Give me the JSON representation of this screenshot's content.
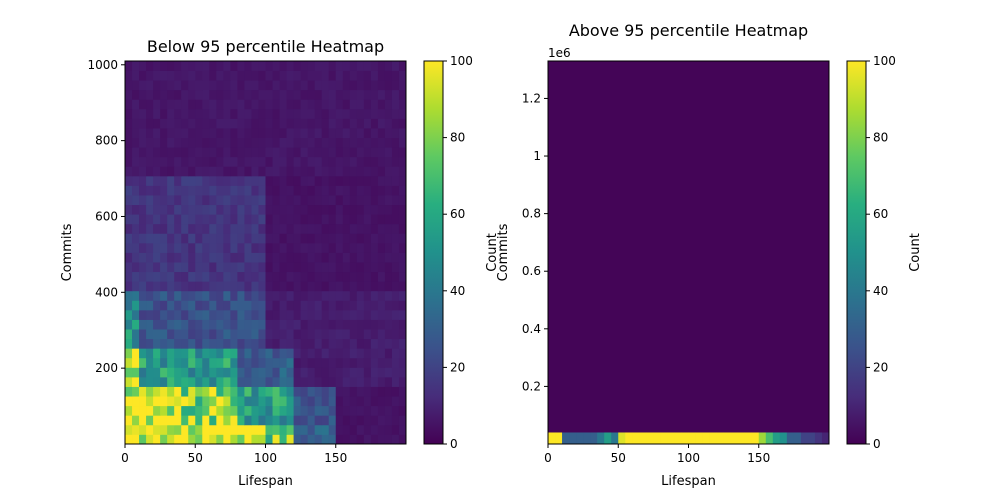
{
  "chart_data": [
    {
      "type": "heatmap",
      "title": "Below 95 percentile Heatmap",
      "xlabel": "Lifespan",
      "ylabel": "Commits",
      "xlim": [
        0,
        200
      ],
      "ylim": [
        0,
        1010
      ],
      "xticks": [
        0,
        50,
        100,
        150
      ],
      "yticks": [
        200,
        400,
        600,
        800,
        1000
      ],
      "x_bin_count": 40,
      "y_bin_count": 40,
      "colorbar": {
        "label": "Count",
        "min": 0,
        "max": 100,
        "ticks": [
          0,
          20,
          40,
          60,
          80,
          100
        ]
      },
      "bin_profile": [
        {
          "y_range": [
            0,
            50
          ],
          "values_by_x_range": [
            {
              "x": [
                0,
                60
              ],
              "value": 100
            },
            {
              "x": [
                60,
                100
              ],
              "value": 100
            },
            {
              "x": [
                100,
                120
              ],
              "value": 80
            },
            {
              "x": [
                120,
                150
              ],
              "value": 30
            },
            {
              "x": [
                150,
                200
              ],
              "value": 5
            }
          ]
        },
        {
          "y_range": [
            50,
            150
          ],
          "values_by_x_range": [
            {
              "x": [
                0,
                40
              ],
              "value": 100
            },
            {
              "x": [
                40,
                80
              ],
              "value": 85
            },
            {
              "x": [
                80,
                120
              ],
              "value": 55
            },
            {
              "x": [
                120,
                150
              ],
              "value": 25
            },
            {
              "x": [
                150,
                200
              ],
              "value": 5
            }
          ]
        },
        {
          "y_range": [
            150,
            250
          ],
          "values_by_x_range": [
            {
              "x": [
                0,
                10
              ],
              "value": 90
            },
            {
              "x": [
                10,
                80
              ],
              "value": 55
            },
            {
              "x": [
                80,
                120
              ],
              "value": 30
            },
            {
              "x": [
                120,
                200
              ],
              "value": 8
            }
          ]
        },
        {
          "y_range": [
            250,
            400
          ],
          "values_by_x_range": [
            {
              "x": [
                0,
                10
              ],
              "value": 50
            },
            {
              "x": [
                10,
                100
              ],
              "value": 25
            },
            {
              "x": [
                100,
                200
              ],
              "value": 8
            }
          ]
        },
        {
          "y_range": [
            400,
            700
          ],
          "values_by_x_range": [
            {
              "x": [
                0,
                100
              ],
              "value": 15
            },
            {
              "x": [
                100,
                200
              ],
              "value": 5
            }
          ]
        },
        {
          "y_range": [
            700,
            1010
          ],
          "values_by_x_range": [
            {
              "x": [
                0,
                200
              ],
              "value": 6
            }
          ]
        }
      ]
    },
    {
      "type": "heatmap",
      "title": "Above 95 percentile Heatmap",
      "xlabel": "Lifespan",
      "ylabel": "Commits",
      "offset_text": "1e6",
      "xlim": [
        0,
        200
      ],
      "ylim": [
        0,
        1.33
      ],
      "xticks": [
        0,
        50,
        100,
        150
      ],
      "yticks": [
        0.2,
        0.4,
        0.6,
        0.8,
        1.0,
        1.2
      ],
      "x_bin_count": 40,
      "colorbar": {
        "label": "Count",
        "min": 0,
        "max": 100,
        "ticks": [
          0,
          20,
          40,
          60,
          80,
          100
        ]
      },
      "bottom_row_values": [
        100,
        100,
        30,
        30,
        30,
        30,
        30,
        40,
        55,
        40,
        95,
        100,
        100,
        100,
        100,
        100,
        100,
        100,
        100,
        100,
        100,
        100,
        100,
        100,
        100,
        100,
        100,
        100,
        100,
        100,
        85,
        70,
        55,
        50,
        30,
        30,
        20,
        20,
        15,
        10
      ],
      "bottom_row_y_range": [
        0,
        0.04
      ],
      "background_value": 1
    }
  ]
}
